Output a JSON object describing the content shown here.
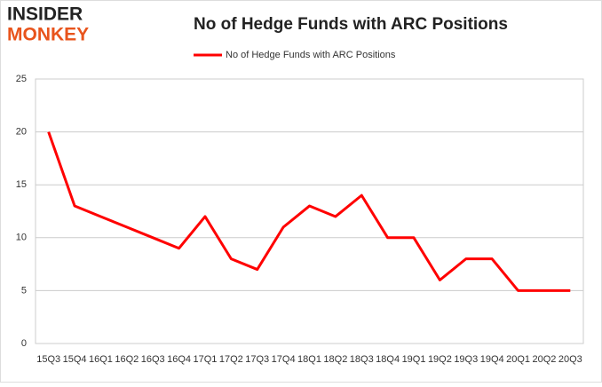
{
  "logo": {
    "line1": "INSIDER",
    "line2": "MONKEY"
  },
  "chart_data": {
    "type": "line",
    "title": "No of Hedge Funds with ARC Positions",
    "categories": [
      "15Q3",
      "15Q4",
      "16Q1",
      "16Q2",
      "16Q3",
      "16Q4",
      "17Q1",
      "17Q2",
      "17Q3",
      "17Q4",
      "18Q1",
      "18Q2",
      "18Q3",
      "18Q4",
      "19Q1",
      "19Q2",
      "19Q3",
      "19Q4",
      "20Q1",
      "20Q2",
      "20Q3"
    ],
    "series": [
      {
        "name": "No of Hedge Funds with ARC Positions",
        "color": "#ff0000",
        "values": [
          20,
          13,
          12,
          11,
          10,
          9,
          12,
          8,
          7,
          11,
          13,
          12,
          14,
          10,
          10,
          6,
          8,
          8,
          5,
          5,
          5
        ]
      }
    ],
    "ylim": [
      0,
      25
    ],
    "yticks": [
      0,
      5,
      10,
      15,
      20,
      25
    ],
    "grid": true,
    "legend": "top"
  }
}
